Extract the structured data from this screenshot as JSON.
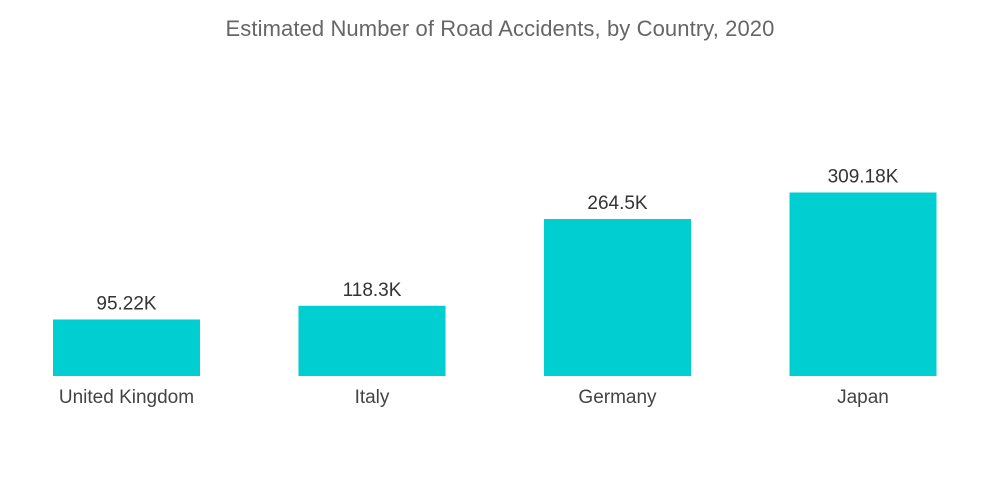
{
  "chart_data": {
    "type": "bar",
    "title": "Estimated Number of Road Accidents, by Country, 2020",
    "categories": [
      "United Kingdom",
      "Italy",
      "Germany",
      "Japan"
    ],
    "values": [
      95.22,
      118.3,
      264.5,
      309.18
    ],
    "value_labels": [
      "95.22K",
      "118.3K",
      "264.5K",
      "309.18K"
    ],
    "unit": "K",
    "xlabel": "",
    "ylabel": "",
    "grid": false,
    "legend": "none",
    "bar_color": "#00CED1"
  }
}
